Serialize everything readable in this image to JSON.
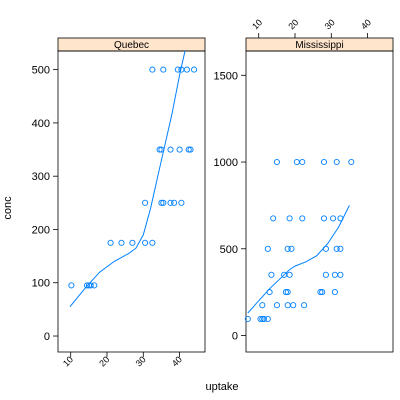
{
  "chart_data": {
    "type": "scatter",
    "xlabel": "uptake",
    "ylabel": "conc",
    "colors": {
      "points": "#0080ff",
      "smooth": "#0080ff",
      "strip": "#ffe5cc",
      "frame": "#000000"
    },
    "x_ticks": [
      10,
      20,
      30,
      40
    ],
    "xlim": [
      6.5,
      47
    ],
    "panels": [
      {
        "strip": "Quebec",
        "ylim": [
          -30,
          535
        ],
        "y_ticks": [
          0,
          100,
          200,
          300,
          400,
          500
        ],
        "points": [
          {
            "x": 10.2,
            "y": 95
          },
          {
            "x": 14.5,
            "y": 95
          },
          {
            "x": 15.0,
            "y": 95
          },
          {
            "x": 15.5,
            "y": 95
          },
          {
            "x": 16.5,
            "y": 95
          },
          {
            "x": 21.0,
            "y": 175
          },
          {
            "x": 24.0,
            "y": 175
          },
          {
            "x": 27.0,
            "y": 175
          },
          {
            "x": 30.5,
            "y": 175
          },
          {
            "x": 32.5,
            "y": 175
          },
          {
            "x": 30.5,
            "y": 250
          },
          {
            "x": 35.0,
            "y": 250
          },
          {
            "x": 35.5,
            "y": 250
          },
          {
            "x": 37.5,
            "y": 250
          },
          {
            "x": 38.5,
            "y": 250
          },
          {
            "x": 40.5,
            "y": 250
          },
          {
            "x": 34.5,
            "y": 350
          },
          {
            "x": 35.0,
            "y": 350
          },
          {
            "x": 37.5,
            "y": 350
          },
          {
            "x": 40.0,
            "y": 350
          },
          {
            "x": 42.5,
            "y": 350
          },
          {
            "x": 43.0,
            "y": 350
          },
          {
            "x": 32.5,
            "y": 500
          },
          {
            "x": 35.5,
            "y": 500
          },
          {
            "x": 39.5,
            "y": 500
          },
          {
            "x": 40.5,
            "y": 500
          },
          {
            "x": 42.0,
            "y": 500
          },
          {
            "x": 44.0,
            "y": 500
          }
        ],
        "smooth": [
          {
            "x": 9.8,
            "y": 55
          },
          {
            "x": 14,
            "y": 90
          },
          {
            "x": 18,
            "y": 120
          },
          {
            "x": 22,
            "y": 140
          },
          {
            "x": 26,
            "y": 155
          },
          {
            "x": 28,
            "y": 165
          },
          {
            "x": 30,
            "y": 190
          },
          {
            "x": 32,
            "y": 240
          },
          {
            "x": 34,
            "y": 300
          },
          {
            "x": 36,
            "y": 360
          },
          {
            "x": 38,
            "y": 420
          },
          {
            "x": 40,
            "y": 490
          },
          {
            "x": 41.5,
            "y": 535
          }
        ]
      },
      {
        "strip": "Mississippi",
        "ylim": [
          -95,
          1640
        ],
        "y_ticks": [
          0,
          500,
          1000,
          1500
        ],
        "points": [
          {
            "x": 7.0,
            "y": 95
          },
          {
            "x": 10.5,
            "y": 95
          },
          {
            "x": 11.0,
            "y": 95
          },
          {
            "x": 11.5,
            "y": 95
          },
          {
            "x": 12.5,
            "y": 95
          },
          {
            "x": 11.0,
            "y": 175
          },
          {
            "x": 15.0,
            "y": 175
          },
          {
            "x": 18.0,
            "y": 175
          },
          {
            "x": 19.5,
            "y": 175
          },
          {
            "x": 22.5,
            "y": 175
          },
          {
            "x": 13.0,
            "y": 250
          },
          {
            "x": 17.5,
            "y": 250
          },
          {
            "x": 18.0,
            "y": 250
          },
          {
            "x": 27.0,
            "y": 250
          },
          {
            "x": 27.5,
            "y": 250
          },
          {
            "x": 31.0,
            "y": 250
          },
          {
            "x": 13.5,
            "y": 350
          },
          {
            "x": 17.0,
            "y": 350
          },
          {
            "x": 18.5,
            "y": 350
          },
          {
            "x": 28.5,
            "y": 350
          },
          {
            "x": 31.0,
            "y": 350
          },
          {
            "x": 32.5,
            "y": 350
          },
          {
            "x": 12.5,
            "y": 500
          },
          {
            "x": 18.0,
            "y": 500
          },
          {
            "x": 19.0,
            "y": 500
          },
          {
            "x": 28.5,
            "y": 500
          },
          {
            "x": 31.5,
            "y": 500
          },
          {
            "x": 32.5,
            "y": 500
          },
          {
            "x": 14.0,
            "y": 675
          },
          {
            "x": 18.5,
            "y": 675
          },
          {
            "x": 22.0,
            "y": 675
          },
          {
            "x": 28.0,
            "y": 675
          },
          {
            "x": 30.5,
            "y": 675
          },
          {
            "x": 32.5,
            "y": 675
          },
          {
            "x": 15.0,
            "y": 1000
          },
          {
            "x": 20.5,
            "y": 1000
          },
          {
            "x": 22.0,
            "y": 1000
          },
          {
            "x": 28.0,
            "y": 1000
          },
          {
            "x": 31.5,
            "y": 1000
          },
          {
            "x": 35.5,
            "y": 1000
          }
        ],
        "smooth": [
          {
            "x": 7.0,
            "y": 130
          },
          {
            "x": 10,
            "y": 200
          },
          {
            "x": 13,
            "y": 270
          },
          {
            "x": 16,
            "y": 330
          },
          {
            "x": 18.5,
            "y": 380
          },
          {
            "x": 20,
            "y": 400
          },
          {
            "x": 23,
            "y": 425
          },
          {
            "x": 26,
            "y": 460
          },
          {
            "x": 29,
            "y": 530
          },
          {
            "x": 32,
            "y": 625
          },
          {
            "x": 35,
            "y": 750
          }
        ]
      }
    ]
  }
}
